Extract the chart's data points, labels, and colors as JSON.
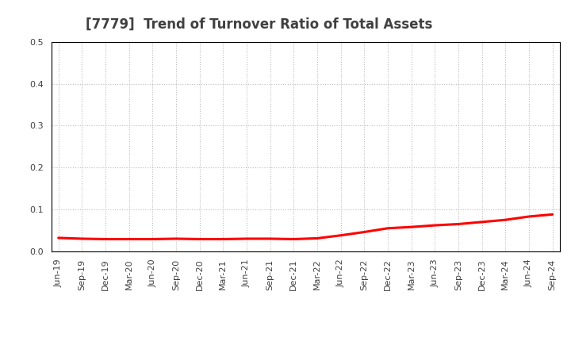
{
  "title": "[7779]  Trend of Turnover Ratio of Total Assets",
  "title_fontsize": 12,
  "title_color": "#404040",
  "x_labels": [
    "Jun-19",
    "Sep-19",
    "Dec-19",
    "Mar-20",
    "Jun-20",
    "Sep-20",
    "Dec-20",
    "Mar-21",
    "Jun-21",
    "Sep-21",
    "Dec-21",
    "Mar-22",
    "Jun-22",
    "Sep-22",
    "Dec-22",
    "Mar-23",
    "Jun-23",
    "Sep-23",
    "Dec-23",
    "Mar-24",
    "Jun-24",
    "Sep-24"
  ],
  "y_values": [
    0.032,
    0.03,
    0.029,
    0.029,
    0.029,
    0.03,
    0.029,
    0.029,
    0.03,
    0.03,
    0.029,
    0.031,
    0.038,
    0.046,
    0.055,
    0.058,
    0.062,
    0.065,
    0.07,
    0.075,
    0.083,
    0.088
  ],
  "line_color": "#FF0000",
  "line_width": 2.2,
  "ylim": [
    0.0,
    0.5
  ],
  "yticks": [
    0.0,
    0.1,
    0.2,
    0.3,
    0.4,
    0.5
  ],
  "grid_color": "#bbbbbb",
  "grid_style": "dotted",
  "background_color": "#ffffff",
  "plot_bg_color": "#ffffff",
  "tick_label_color": "#404040",
  "tick_fontsize": 8
}
